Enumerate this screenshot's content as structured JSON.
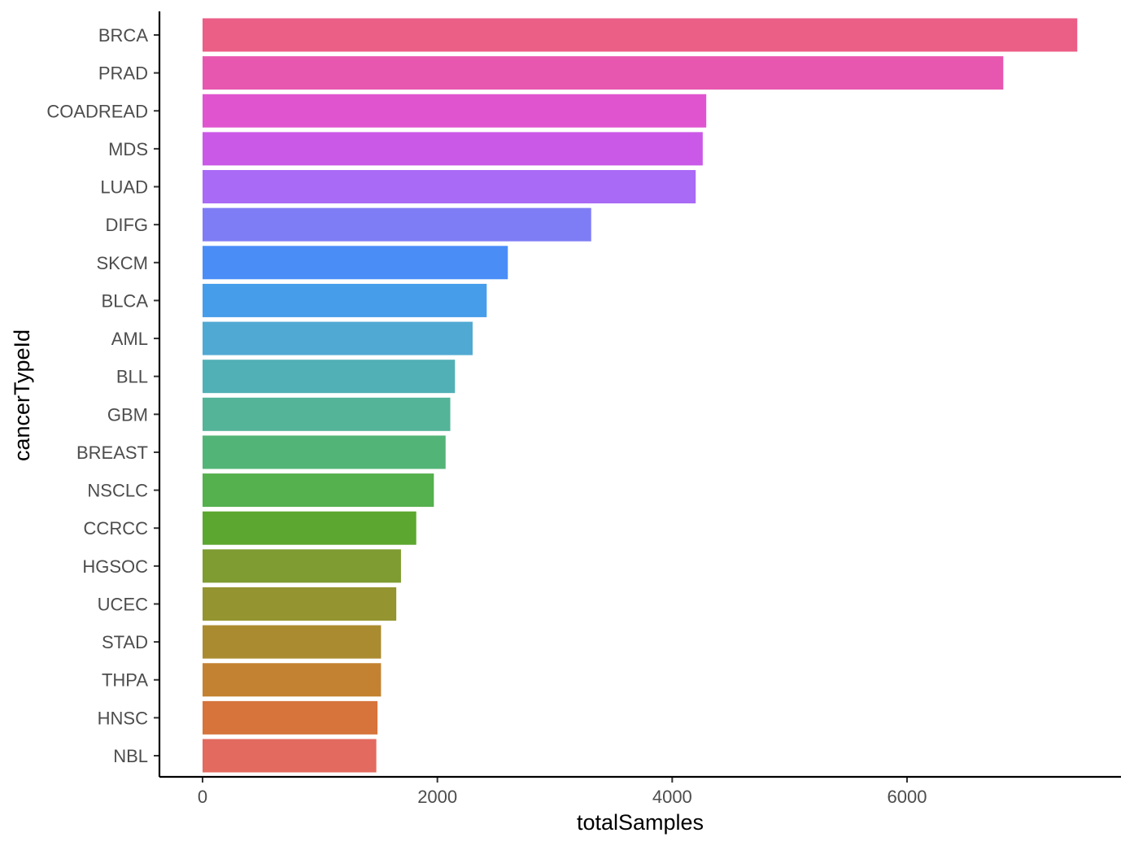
{
  "chart_data": {
    "type": "bar",
    "orientation": "horizontal",
    "xlabel": "totalSamples",
    "ylabel": "cancerTypeId",
    "xlim": [
      0,
      7800
    ],
    "x_ticks": [
      0,
      2000,
      4000,
      6000
    ],
    "x_tick_labels": [
      "0",
      "2000",
      "4000",
      "6000"
    ],
    "grid": false,
    "legend": "none",
    "categories": [
      "BRCA",
      "PRAD",
      "COADREAD",
      "MDS",
      "LUAD",
      "DIFG",
      "SKCM",
      "BLCA",
      "AML",
      "BLL",
      "GBM",
      "BREAST",
      "NSCLC",
      "CCRCC",
      "HGSOC",
      "UCEC",
      "STAD",
      "THPA",
      "HNSC",
      "NBL"
    ],
    "values": [
      7450,
      6820,
      4290,
      4260,
      4200,
      3310,
      2600,
      2420,
      2300,
      2150,
      2110,
      2070,
      1970,
      1820,
      1690,
      1650,
      1520,
      1520,
      1490,
      1480
    ],
    "colors": [
      "#EB5E85",
      "#E857AF",
      "#E055CF",
      "#CB59E8",
      "#A96AF6",
      "#7F7DF5",
      "#4A8DF7",
      "#469DEA",
      "#50A9D2",
      "#51B0B6",
      "#53B498",
      "#53B477",
      "#55B04E",
      "#5CA72F",
      "#7E9C31",
      "#949431",
      "#AB8B30",
      "#C38231",
      "#D6743C",
      "#E36A5F"
    ]
  }
}
